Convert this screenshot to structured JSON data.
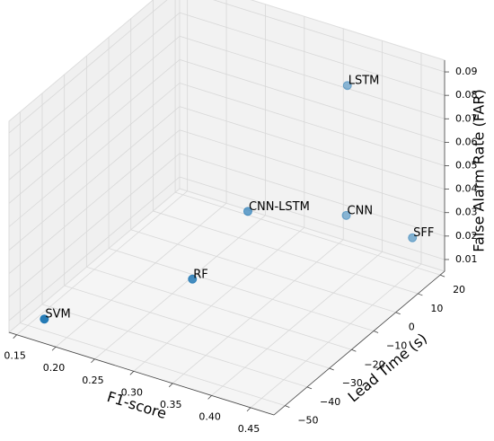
{
  "chart_data": {
    "type": "scatter3d",
    "labels": [
      "SVM",
      "RF",
      "CNN-LSTM",
      "CNN",
      "LSTM",
      "SFF"
    ],
    "x": [
      0.174,
      0.31,
      0.31,
      0.378,
      0.378,
      0.47
    ],
    "y": [
      -51,
      -32,
      -7,
      13.5,
      14,
      11
    ],
    "z": [
      0.011,
      0.027,
      0.036,
      0.025,
      0.08,
      0.027
    ],
    "color": "#1f77b4",
    "xlabel": "F1-score",
    "ylabel": "Lead Time (s)",
    "zlabel": "False Alarm Rate (FAR)",
    "xlim": [
      0.14,
      0.48
    ],
    "ylim": [
      -55,
      22
    ],
    "zlim": [
      0.005,
      0.095
    ],
    "xticks": [
      0.15,
      {
        "value": 0.2,
        "label": "0.20"
      },
      0.25,
      {
        "value": 0.3,
        "label": "0.30"
      },
      0.35,
      {
        "value": 0.4,
        "label": "0.40"
      },
      0.45
    ],
    "yticks": [
      {
        "value": -50,
        "label": "−50"
      },
      {
        "value": -40,
        "label": "−40"
      },
      {
        "value": -30,
        "label": "−30"
      },
      {
        "value": -20,
        "label": "−20"
      },
      {
        "value": -10,
        "label": "−10"
      },
      0,
      10,
      20
    ],
    "zticks": [
      0.01,
      0.02,
      0.03,
      0.04,
      0.05,
      0.06,
      0.07,
      0.08,
      0.09
    ],
    "grid": true
  }
}
